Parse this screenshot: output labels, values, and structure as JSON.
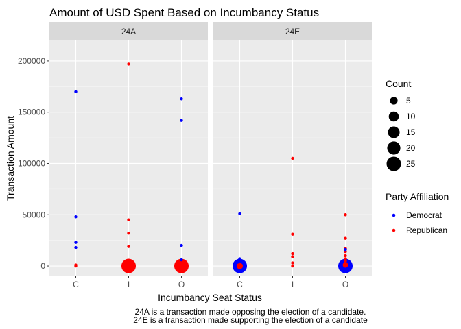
{
  "chart_data": {
    "type": "scatter",
    "title": "Amount of USD Spent Based on Incumbancy Status",
    "xlabel": "Incumbancy Seat Status",
    "ylabel": "Transaction Amount",
    "categories": [
      "C",
      "I",
      "O"
    ],
    "ylim": [
      -10000,
      220000
    ],
    "yticks": [
      0,
      50000,
      100000,
      150000,
      200000
    ],
    "ytick_labels": [
      "0",
      "50000",
      "100000",
      "150000",
      "200000"
    ],
    "grid": true,
    "legend_position": "right",
    "facets": [
      {
        "label": "24A",
        "points": [
          {
            "x": "C",
            "y": 170000,
            "party": "Democrat",
            "count": 1
          },
          {
            "x": "C",
            "y": 48000,
            "party": "Democrat",
            "count": 1
          },
          {
            "x": "C",
            "y": 23000,
            "party": "Democrat",
            "count": 1
          },
          {
            "x": "C",
            "y": 18000,
            "party": "Democrat",
            "count": 1
          },
          {
            "x": "C",
            "y": 1000,
            "party": "Republican",
            "count": 1
          },
          {
            "x": "C",
            "y": 0,
            "party": "Republican",
            "count": 1
          },
          {
            "x": "I",
            "y": 197000,
            "party": "Republican",
            "count": 1
          },
          {
            "x": "I",
            "y": 45000,
            "party": "Republican",
            "count": 1
          },
          {
            "x": "I",
            "y": 32000,
            "party": "Republican",
            "count": 1
          },
          {
            "x": "I",
            "y": 19000,
            "party": "Republican",
            "count": 1
          },
          {
            "x": "I",
            "y": 0,
            "party": "Republican",
            "count": 25
          },
          {
            "x": "O",
            "y": 163000,
            "party": "Democrat",
            "count": 1
          },
          {
            "x": "O",
            "y": 142000,
            "party": "Democrat",
            "count": 1
          },
          {
            "x": "O",
            "y": 20000,
            "party": "Democrat",
            "count": 1
          },
          {
            "x": "O",
            "y": 6000,
            "party": "Democrat",
            "count": 1
          },
          {
            "x": "O",
            "y": 4000,
            "party": "Republican",
            "count": 2
          },
          {
            "x": "O",
            "y": 0,
            "party": "Republican",
            "count": 25
          }
        ]
      },
      {
        "label": "24E",
        "points": [
          {
            "x": "C",
            "y": 51000,
            "party": "Democrat",
            "count": 1
          },
          {
            "x": "C",
            "y": 7000,
            "party": "Democrat",
            "count": 1
          },
          {
            "x": "C",
            "y": 4000,
            "party": "Democrat",
            "count": 2
          },
          {
            "x": "C",
            "y": 0,
            "party": "Democrat",
            "count": 25
          },
          {
            "x": "C",
            "y": 2000,
            "party": "Republican",
            "count": 1
          },
          {
            "x": "C",
            "y": 0,
            "party": "Republican",
            "count": 3
          },
          {
            "x": "I",
            "y": 105000,
            "party": "Republican",
            "count": 1
          },
          {
            "x": "I",
            "y": 31000,
            "party": "Republican",
            "count": 1
          },
          {
            "x": "I",
            "y": 12000,
            "party": "Republican",
            "count": 1
          },
          {
            "x": "I",
            "y": 9000,
            "party": "Republican",
            "count": 1
          },
          {
            "x": "I",
            "y": 3000,
            "party": "Republican",
            "count": 1
          },
          {
            "x": "I",
            "y": 0,
            "party": "Republican",
            "count": 1
          },
          {
            "x": "O",
            "y": 50000,
            "party": "Republican",
            "count": 1
          },
          {
            "x": "O",
            "y": 27000,
            "party": "Republican",
            "count": 1
          },
          {
            "x": "O",
            "y": 17000,
            "party": "Republican",
            "count": 1
          },
          {
            "x": "O",
            "y": 14000,
            "party": "Republican",
            "count": 1
          },
          {
            "x": "O",
            "y": 10000,
            "party": "Republican",
            "count": 1
          },
          {
            "x": "O",
            "y": 7000,
            "party": "Republican",
            "count": 1
          },
          {
            "x": "O",
            "y": 5000,
            "party": "Republican",
            "count": 1
          },
          {
            "x": "O",
            "y": 3000,
            "party": "Republican",
            "count": 1
          },
          {
            "x": "O",
            "y": 16000,
            "party": "Democrat",
            "count": 1
          },
          {
            "x": "O",
            "y": 0,
            "party": "Democrat",
            "count": 25
          },
          {
            "x": "O",
            "y": 1000,
            "party": "Republican",
            "count": 2
          }
        ]
      }
    ],
    "legend": {
      "size_title": "Count",
      "sizes": [
        5,
        10,
        15,
        20,
        25
      ],
      "color_title": "Party Affiliation",
      "parties": [
        {
          "name": "Democrat",
          "color": "#0000ff"
        },
        {
          "name": "Republican",
          "color": "#ff0000"
        }
      ]
    },
    "caption_lines": [
      "24A is a transaction made opposing the election of a candidate.",
      "24E is a transaction made supporting the election of a candidate"
    ]
  }
}
